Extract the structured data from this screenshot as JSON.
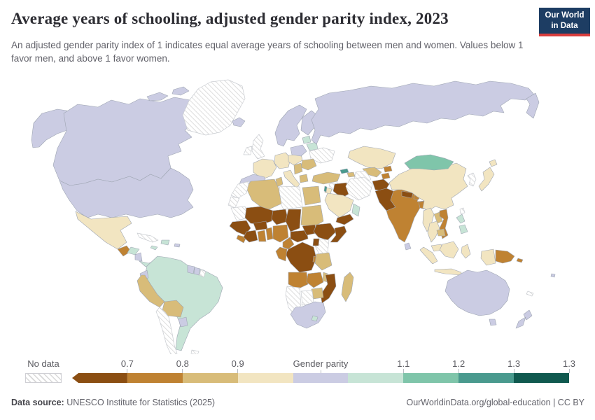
{
  "header": {
    "title": "Average years of schooling, adjusted gender parity index, 2023",
    "subtitle": "An adjusted gender parity index of 1 indicates equal average years of schooling between men and women. Values below 1 favor men, and above 1 favor women.",
    "logo": {
      "line1": "Our World",
      "line2": "in Data",
      "bg_color": "#1d3d63",
      "accent_color": "#d93d3d"
    }
  },
  "footer": {
    "source_label": "Data source:",
    "source_text": " UNESCO Institute for Statistics (2025)",
    "rights": "OurWorldinData.org/global-education | CC BY"
  },
  "chart_data": {
    "type": "choropleth",
    "title": "Average years of schooling, adjusted gender parity index, 2023",
    "year": "2023",
    "legend": {
      "no_data_label": "No data",
      "open_ended_low": true,
      "tick_labels": [
        "0.7",
        "0.8",
        "0.9",
        "Gender parity",
        "1.1",
        "1.2",
        "1.3",
        "1.3"
      ],
      "max_label": "1.3"
    },
    "bins": [
      {
        "label": "< 0.7",
        "color": "#8B4E12"
      },
      {
        "label": "0.7–0.8",
        "color": "#BF8232"
      },
      {
        "label": "0.8–0.9",
        "color": "#D8BC79"
      },
      {
        "label": "0.9–0.95",
        "color": "#F2E5C1"
      },
      {
        "label": "0.95–1.05 (gender parity)",
        "color": "#CBCCE3"
      },
      {
        "label": "1.05–1.1",
        "color": "#C7E4D6"
      },
      {
        "label": "1.1–1.2",
        "color": "#7FC5AA"
      },
      {
        "label": "1.2–1.3",
        "color": "#4A9A8E"
      },
      {
        "label": "> 1.3",
        "color": "#10594F"
      }
    ],
    "no_data_color": "hatch",
    "regions": [
      {
        "id": "alaska",
        "name": "United States (Alaska)",
        "bin": 4
      },
      {
        "id": "canada",
        "name": "Canada",
        "bin": 4
      },
      {
        "id": "arctic1",
        "name": "Canada (Arctic Islands)",
        "bin": 4
      },
      {
        "id": "arctic2",
        "name": "Canada (Arctic Islands)",
        "bin": 4
      },
      {
        "id": "usa",
        "name": "United States",
        "bin": 4
      },
      {
        "id": "greenland",
        "name": "Greenland",
        "bin": "no_data"
      },
      {
        "id": "iceland",
        "name": "Iceland",
        "bin": 4
      },
      {
        "id": "mexico",
        "name": "Mexico",
        "bin": 3
      },
      {
        "id": "guatemala",
        "name": "Guatemala",
        "bin": 1
      },
      {
        "id": "honduras",
        "name": "Honduras",
        "bin": 5
      },
      {
        "id": "nicaragua",
        "name": "Nicaragua",
        "bin": 4
      },
      {
        "id": "costapanama",
        "name": "Costa Rica & Panama",
        "bin": 5
      },
      {
        "id": "cuba",
        "name": "Cuba",
        "bin": "no_data"
      },
      {
        "id": "hispaniola",
        "name": "Dominican Republic & Haiti",
        "bin": 5
      },
      {
        "id": "jamaica",
        "name": "Jamaica",
        "bin": 5
      },
      {
        "id": "puertorico",
        "name": "Puerto Rico",
        "bin": 4
      },
      {
        "id": "samerica",
        "name": "Brazil, Colombia, Venezuela, Argentina, Uruguay",
        "bin": 5
      },
      {
        "id": "ecuador",
        "name": "Ecuador",
        "bin": 4
      },
      {
        "id": "peru",
        "name": "Peru",
        "bin": 2
      },
      {
        "id": "bolivia",
        "name": "Bolivia",
        "bin": 2
      },
      {
        "id": "paraguay",
        "name": "Paraguay",
        "bin": 4
      },
      {
        "id": "guyana",
        "name": "Guyana",
        "bin": 4
      },
      {
        "id": "suriname",
        "name": "Suriname",
        "bin": 4
      },
      {
        "id": "frguiana",
        "name": "French Guiana",
        "bin": "no_data"
      },
      {
        "id": "chile",
        "name": "Chile",
        "bin": "no_data"
      },
      {
        "id": "falklands",
        "name": "Falkland Islands",
        "bin": "no_data"
      },
      {
        "id": "scandinavia",
        "name": "Norway & Sweden",
        "bin": 4
      },
      {
        "id": "finland",
        "name": "Finland",
        "bin": 4
      },
      {
        "id": "uk",
        "name": "United Kingdom",
        "bin": "no_data"
      },
      {
        "id": "ireland",
        "name": "Ireland",
        "bin": "no_data"
      },
      {
        "id": "france",
        "name": "France",
        "bin": 3
      },
      {
        "id": "iberia",
        "name": "Spain & Portugal",
        "bin": 4
      },
      {
        "id": "germany",
        "name": "Germany",
        "bin": 3
      },
      {
        "id": "ceurope",
        "name": "Central Europe",
        "bin": 3
      },
      {
        "id": "italy",
        "name": "Italy",
        "bin": 3
      },
      {
        "id": "poland",
        "name": "Poland",
        "bin": 4
      },
      {
        "id": "baltics",
        "name": "Baltic States",
        "bin": 5
      },
      {
        "id": "belarus",
        "name": "Belarus",
        "bin": 5
      },
      {
        "id": "ukraine",
        "name": "Ukraine",
        "bin": "no_data"
      },
      {
        "id": "romaniabulgaria",
        "name": "Romania & Bulgaria",
        "bin": 2
      },
      {
        "id": "balkans",
        "name": "Western Balkans",
        "bin": 2
      },
      {
        "id": "greece",
        "name": "Greece",
        "bin": 2
      },
      {
        "id": "russia",
        "name": "Russia",
        "bin": 4
      },
      {
        "id": "kamchatka",
        "name": "Russia (Far East)",
        "bin": 4
      },
      {
        "id": "kazakhstan",
        "name": "Kazakhstan",
        "bin": 3
      },
      {
        "id": "uzbekistan",
        "name": "Uzbekistan",
        "bin": 2
      },
      {
        "id": "turkmenistan",
        "name": "Turkmenistan",
        "bin": "no_data"
      },
      {
        "id": "kyrgyzstan",
        "name": "Kyrgyzstan",
        "bin": 1
      },
      {
        "id": "tajikistan",
        "name": "Tajikistan",
        "bin": 1
      },
      {
        "id": "georgia",
        "name": "Georgia",
        "bin": 7
      },
      {
        "id": "azerbaijan",
        "name": "Azerbaijan",
        "bin": 2
      },
      {
        "id": "turkey",
        "name": "Turkey",
        "bin": 2
      },
      {
        "id": "syria",
        "name": "Syria",
        "bin": "no_data"
      },
      {
        "id": "iraq",
        "name": "Iraq",
        "bin": 0
      },
      {
        "id": "iran",
        "name": "Iran",
        "bin": "no_data"
      },
      {
        "id": "saudi",
        "name": "Saudi Arabia",
        "bin": 3
      },
      {
        "id": "jordan",
        "name": "Jordan",
        "bin": 3
      },
      {
        "id": "israel",
        "name": "Israel",
        "bin": 7
      },
      {
        "id": "yemen",
        "name": "Yemen",
        "bin": 0
      },
      {
        "id": "oman",
        "name": "Oman",
        "bin": 5
      },
      {
        "id": "egypt",
        "name": "Egypt",
        "bin": 2
      },
      {
        "id": "libya",
        "name": "Libya",
        "bin": "no_data"
      },
      {
        "id": "tunisia",
        "name": "Tunisia",
        "bin": 2
      },
      {
        "id": "algeria",
        "name": "Algeria",
        "bin": 2
      },
      {
        "id": "morocco",
        "name": "Morocco",
        "bin": "no_data"
      },
      {
        "id": "wsahara",
        "name": "Western Sahara",
        "bin": "no_data"
      },
      {
        "id": "mauritania",
        "name": "Mauritania",
        "bin": "no_data"
      },
      {
        "id": "mali",
        "name": "Mali",
        "bin": 0
      },
      {
        "id": "niger",
        "name": "Niger",
        "bin": 0
      },
      {
        "id": "chad",
        "name": "Chad",
        "bin": 0
      },
      {
        "id": "sudan",
        "name": "Sudan",
        "bin": 2
      },
      {
        "id": "senegalguinea",
        "name": "Senegal & Guinea",
        "bin": 0
      },
      {
        "id": "sierraliberia",
        "name": "Sierra Leone & Liberia",
        "bin": 1
      },
      {
        "id": "cotedivoire",
        "name": "Côte d'Ivoire",
        "bin": 0
      },
      {
        "id": "burkina",
        "name": "Burkina Faso",
        "bin": 0
      },
      {
        "id": "ghana",
        "name": "Ghana",
        "bin": 1
      },
      {
        "id": "togobenin",
        "name": "Togo & Benin",
        "bin": 1
      },
      {
        "id": "nigeria",
        "name": "Nigeria",
        "bin": 1
      },
      {
        "id": "cameroon",
        "name": "Cameroon",
        "bin": 1
      },
      {
        "id": "car",
        "name": "Central African Republic",
        "bin": 0
      },
      {
        "id": "ssudan",
        "name": "South Sudan",
        "bin": 0
      },
      {
        "id": "ethiopia",
        "name": "Ethiopia",
        "bin": 0
      },
      {
        "id": "somalia",
        "name": "Somalia",
        "bin": 0
      },
      {
        "id": "kenya",
        "name": "Kenya",
        "bin": "no_data"
      },
      {
        "id": "uganda",
        "name": "Uganda",
        "bin": 0
      },
      {
        "id": "drc",
        "name": "Democratic Republic of Congo",
        "bin": 0
      },
      {
        "id": "congogabon",
        "name": "Congo & Gabon",
        "bin": 1
      },
      {
        "id": "rwandaburundi",
        "name": "Rwanda & Burundi",
        "bin": 1
      },
      {
        "id": "tanzania",
        "name": "Tanzania",
        "bin": 2
      },
      {
        "id": "angola",
        "name": "Angola",
        "bin": 1
      },
      {
        "id": "zambia",
        "name": "Zambia",
        "bin": 1
      },
      {
        "id": "malawi",
        "name": "Malawi",
        "bin": 2
      },
      {
        "id": "mozambique",
        "name": "Mozambique",
        "bin": 0
      },
      {
        "id": "zimbabwe",
        "name": "Zimbabwe",
        "bin": 2
      },
      {
        "id": "botswana",
        "name": "Botswana",
        "bin": "no_data"
      },
      {
        "id": "namibia",
        "name": "Namibia",
        "bin": "no_data"
      },
      {
        "id": "southafrica",
        "name": "South Africa",
        "bin": 4
      },
      {
        "id": "lesotho",
        "name": "Lesotho",
        "bin": 5
      },
      {
        "id": "madagascar",
        "name": "Madagascar",
        "bin": 2
      },
      {
        "id": "afghanistan",
        "name": "Afghanistan",
        "bin": 0
      },
      {
        "id": "pakistan",
        "name": "Pakistan",
        "bin": 0
      },
      {
        "id": "india",
        "name": "India",
        "bin": 1
      },
      {
        "id": "nepal",
        "name": "Nepal",
        "bin": 0
      },
      {
        "id": "bhutan",
        "name": "Bhutan",
        "bin": 1
      },
      {
        "id": "bangladesh",
        "name": "Bangladesh",
        "bin": 1
      },
      {
        "id": "srilanka",
        "name": "Sri Lanka",
        "bin": 4
      },
      {
        "id": "china",
        "name": "China",
        "bin": 3
      },
      {
        "id": "mongolia",
        "name": "Mongolia",
        "bin": 6
      },
      {
        "id": "korea",
        "name": "North & South Korea",
        "bin": "no_data"
      },
      {
        "id": "japan",
        "name": "Japan",
        "bin": 3
      },
      {
        "id": "hokkaido",
        "name": "Japan (Hokkaido)",
        "bin": 3
      },
      {
        "id": "taiwan",
        "name": "Taiwan",
        "bin": "no_data"
      },
      {
        "id": "myanmar",
        "name": "Myanmar",
        "bin": 3
      },
      {
        "id": "laos",
        "name": "Laos",
        "bin": 2
      },
      {
        "id": "thailand",
        "name": "Thailand",
        "bin": 3
      },
      {
        "id": "vietnam",
        "name": "Vietnam",
        "bin": 1
      },
      {
        "id": "cambodia",
        "name": "Cambodia",
        "bin": 2
      },
      {
        "id": "malaysia",
        "name": "Malaysia",
        "bin": 3
      },
      {
        "id": "sumatra",
        "name": "Indonesia (Sumatra)",
        "bin": 3
      },
      {
        "id": "java",
        "name": "Indonesia (Java)",
        "bin": 3
      },
      {
        "id": "borneo",
        "name": "Indonesia (Borneo)",
        "bin": 3
      },
      {
        "id": "sulawesi",
        "name": "Indonesia (Sulawesi)",
        "bin": 3
      },
      {
        "id": "westpapua",
        "name": "Indonesia (Papua)",
        "bin": 3
      },
      {
        "id": "png",
        "name": "Papua New Guinea",
        "bin": 1
      },
      {
        "id": "solomon",
        "name": "Solomon Islands",
        "bin": 1
      },
      {
        "id": "philippines1",
        "name": "Philippines",
        "bin": 5
      },
      {
        "id": "philippines2",
        "name": "Philippines",
        "bin": 5
      },
      {
        "id": "australia",
        "name": "Australia",
        "bin": 4
      },
      {
        "id": "tasmania",
        "name": "Australia (Tasmania)",
        "bin": 4
      },
      {
        "id": "nz1",
        "name": "New Zealand",
        "bin": 4
      },
      {
        "id": "nz2",
        "name": "New Zealand",
        "bin": 4
      },
      {
        "id": "newcaledonia",
        "name": "New Caledonia",
        "bin": "no_data"
      },
      {
        "id": "fiji",
        "name": "Fiji",
        "bin": 4
      }
    ]
  }
}
